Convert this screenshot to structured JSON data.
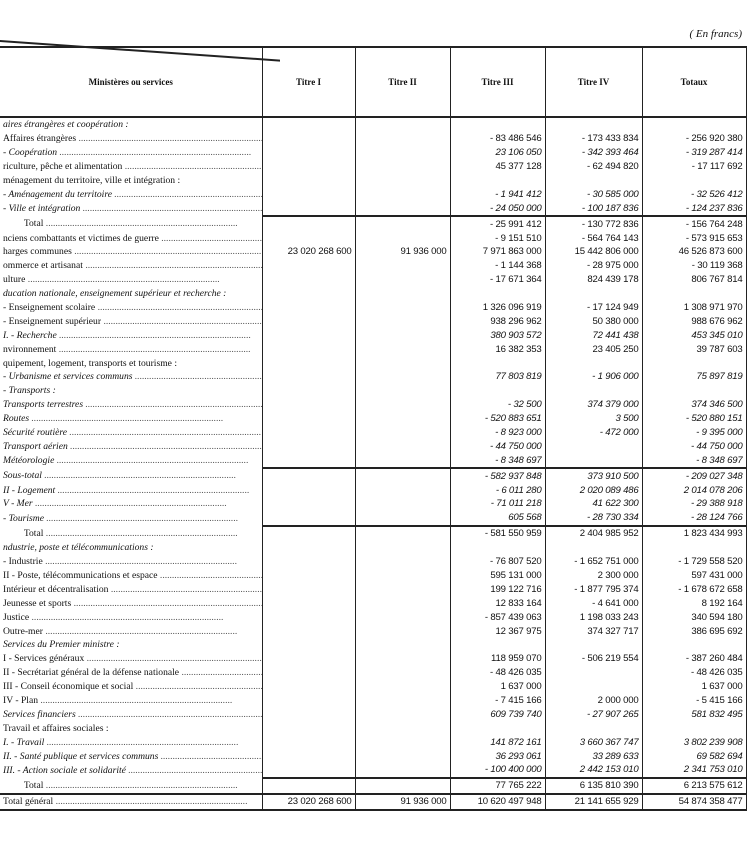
{
  "unit_note": "( En francs)",
  "columns": [
    "Ministères ou services",
    "Titre I",
    "Titre II",
    "Titre III",
    "Titre IV",
    "Totaux"
  ],
  "rows": [
    {
      "label": "aires étrangères et coopération :",
      "kind": "heading",
      "values": [
        "",
        "",
        "",
        "",
        ""
      ]
    },
    {
      "label": "Affaires étrangères",
      "kind": "row",
      "values": [
        "",
        "",
        "- 83 486 546",
        "- 173 433 834",
        "- 256 920 380"
      ]
    },
    {
      "label": "- Coopération",
      "kind": "italic",
      "values": [
        "",
        "",
        "23 106 050",
        "- 342 393 464",
        "- 319 287 414"
      ]
    },
    {
      "label": "riculture, pêche et alimentation",
      "kind": "row",
      "values": [
        "",
        "",
        "45 377 128",
        "- 62 494 820",
        "- 17 117 692"
      ]
    },
    {
      "label": "ménagement du territoire, ville et intégration :",
      "kind": "heading-plain",
      "values": [
        "",
        "",
        "",
        "",
        ""
      ]
    },
    {
      "label": "- Aménagement du territoire",
      "kind": "italic",
      "values": [
        "",
        "",
        "- 1 941 412",
        "- 30 585 000",
        "- 32 526 412"
      ]
    },
    {
      "label": "- Ville et intégration",
      "kind": "italic",
      "values": [
        "",
        "",
        "- 24 050 000",
        "- 100 187 836",
        "- 124 237 836"
      ]
    },
    {
      "label": "Total",
      "kind": "total",
      "values": [
        "",
        "",
        "- 25 991 412",
        "- 130 772 836",
        "- 156 764 248"
      ]
    },
    {
      "label": "nciens combattants et victimes de guerre",
      "kind": "row",
      "values": [
        "",
        "",
        "- 9 151 510",
        "- 564 764 143",
        "- 573 915 653"
      ]
    },
    {
      "label": "harges communes",
      "kind": "row",
      "values": [
        "23 020 268 600",
        "91 936 000",
        "7 971 863 000",
        "15 442 806 000",
        "46 526 873 600"
      ]
    },
    {
      "label": "ommerce et artisanat",
      "kind": "row",
      "values": [
        "",
        "",
        "- 1 144 368",
        "- 28 975 000",
        "- 30 119 368"
      ]
    },
    {
      "label": "ulture",
      "kind": "row",
      "values": [
        "",
        "",
        "- 17 671 364",
        "824 439 178",
        "806 767 814"
      ]
    },
    {
      "label": "ducation nationale, enseignement supérieur et recherche :",
      "kind": "heading",
      "values": [
        "",
        "",
        "",
        "",
        ""
      ]
    },
    {
      "label": "- Enseignement scolaire",
      "kind": "row",
      "values": [
        "",
        "",
        "1 326 096 919",
        "- 17 124 949",
        "1 308 971 970"
      ]
    },
    {
      "label": "- Enseignement supérieur",
      "kind": "row",
      "values": [
        "",
        "",
        "938 296 962",
        "50 380 000",
        "988 676 962"
      ]
    },
    {
      "label": "I. - Recherche",
      "kind": "italic",
      "values": [
        "",
        "",
        "380 903 572",
        "72 441 438",
        "453 345 010"
      ]
    },
    {
      "label": "nvironnement",
      "kind": "row",
      "values": [
        "",
        "",
        "16 382 353",
        "23 405 250",
        "39 787 603"
      ]
    },
    {
      "label": "quipement, logement, transports et tourisme :",
      "kind": "heading-plain",
      "values": [
        "",
        "",
        "",
        "",
        ""
      ]
    },
    {
      "label": "- Urbanisme et services communs",
      "kind": "italic",
      "values": [
        "",
        "",
        "77 803 819",
        "- 1 906 000",
        "75 897 819"
      ]
    },
    {
      "label": "- Transports :",
      "kind": "heading",
      "values": [
        "",
        "",
        "",
        "",
        ""
      ]
    },
    {
      "label": "Transports terrestres",
      "kind": "italic",
      "values": [
        "",
        "",
        "- 32 500",
        "374 379 000",
        "374 346 500"
      ]
    },
    {
      "label": "Routes",
      "kind": "italic",
      "values": [
        "",
        "",
        "- 520 883 651",
        "3 500",
        "- 520 880 151"
      ]
    },
    {
      "label": "Sécurité routière",
      "kind": "italic",
      "values": [
        "",
        "",
        "- 8 923 000",
        "- 472 000",
        "- 9 395 000"
      ]
    },
    {
      "label": "Transport aérien",
      "kind": "italic",
      "values": [
        "",
        "",
        "- 44 750 000",
        "",
        "- 44 750 000"
      ]
    },
    {
      "label": "Météorologie",
      "kind": "sub-italic",
      "values": [
        "",
        "",
        "- 8 348 697",
        "",
        "- 8 348 697"
      ]
    },
    {
      "label": "Sous-total",
      "kind": "italic",
      "values": [
        "",
        "",
        "- 582 937 848",
        "373 910 500",
        "- 209 027 348"
      ]
    },
    {
      "label": "II - Logement",
      "kind": "italic",
      "values": [
        "",
        "",
        "- 6 011 280",
        "2 020 089 486",
        "2 014 078 206"
      ]
    },
    {
      "label": "V - Mer",
      "kind": "italic",
      "values": [
        "",
        "",
        "- 71 011 218",
        "41 622 300",
        "- 29 388 918"
      ]
    },
    {
      "label": "- Tourisme",
      "kind": "italic",
      "values": [
        "",
        "",
        "605 568",
        "- 28 730 334",
        "- 28 124 766"
      ]
    },
    {
      "label": "Total",
      "kind": "total",
      "values": [
        "",
        "",
        "- 581 550 959",
        "2 404 985 952",
        "1 823 434 993"
      ]
    },
    {
      "label": "ndustrie, poste et télécommunications :",
      "kind": "heading",
      "values": [
        "",
        "",
        "",
        "",
        ""
      ]
    },
    {
      "label": "- Industrie",
      "kind": "row",
      "values": [
        "",
        "",
        "- 76 807 520",
        "- 1 652 751 000",
        "- 1 729 558 520"
      ]
    },
    {
      "label": "II - Poste, télécommunications et espace",
      "kind": "row",
      "values": [
        "",
        "",
        "595 131 000",
        "2 300 000",
        "597 431 000"
      ]
    },
    {
      "label": "Intérieur et décentralisation",
      "kind": "row",
      "values": [
        "",
        "",
        "199 122 716",
        "- 1 877 795 374",
        "- 1 678 672 658"
      ]
    },
    {
      "label": "Jeunesse et sports",
      "kind": "row",
      "values": [
        "",
        "",
        "12 833 164",
        "- 4 641 000",
        "8 192 164"
      ]
    },
    {
      "label": "Justice",
      "kind": "row",
      "values": [
        "",
        "",
        "- 857 439 063",
        "1 198 033 243",
        "340 594 180"
      ]
    },
    {
      "label": "Outre-mer",
      "kind": "row",
      "values": [
        "",
        "",
        "12 367 975",
        "374 327 717",
        "386 695 692"
      ]
    },
    {
      "label": "Services du Premier ministre :",
      "kind": "heading",
      "values": [
        "",
        "",
        "",
        "",
        ""
      ]
    },
    {
      "label": "I - Services généraux",
      "kind": "row",
      "values": [
        "",
        "",
        "118 959 070",
        "- 506 219 554",
        "- 387 260 484"
      ]
    },
    {
      "label": "II - Secrétariat général de la défense nationale",
      "kind": "row",
      "values": [
        "",
        "",
        "- 48 426 035",
        "",
        "- 48 426 035"
      ]
    },
    {
      "label": "III - Conseil économique et social",
      "kind": "row",
      "values": [
        "",
        "",
        "1 637 000",
        "",
        "1 637 000"
      ]
    },
    {
      "label": "IV - Plan",
      "kind": "row",
      "values": [
        "",
        "",
        "- 7 415 166",
        "2 000 000",
        "- 5 415 166"
      ]
    },
    {
      "label": "Services financiers",
      "kind": "italic",
      "values": [
        "",
        "",
        "609 739 740",
        "- 27 907 265",
        "581 832 495"
      ]
    },
    {
      "label": "Travail et affaires sociales :",
      "kind": "heading-plain",
      "values": [
        "",
        "",
        "",
        "",
        ""
      ]
    },
    {
      "label": "I. - Travail",
      "kind": "italic",
      "values": [
        "",
        "",
        "141 872 161",
        "3 660 367 747",
        "3 802 239 908"
      ]
    },
    {
      "label": "II. - Santé publique et services communs",
      "kind": "italic",
      "values": [
        "",
        "",
        "36 293 061",
        "33 289 633",
        "69 582 694"
      ]
    },
    {
      "label": "III. - Action sociale et solidarité",
      "kind": "italic",
      "values": [
        "",
        "",
        "- 100 400 000",
        "2 442 153 010",
        "2 341 753 010"
      ]
    },
    {
      "label": "Total",
      "kind": "total",
      "values": [
        "",
        "",
        "77 765 222",
        "6 135 810 390",
        "6 213 575 612"
      ]
    },
    {
      "label": "Total général",
      "kind": "totalg",
      "values": [
        "23 020 268 600",
        "91 936 000",
        "10 620 497 948",
        "21 141 655 929",
        "54 874 358 477"
      ]
    }
  ]
}
